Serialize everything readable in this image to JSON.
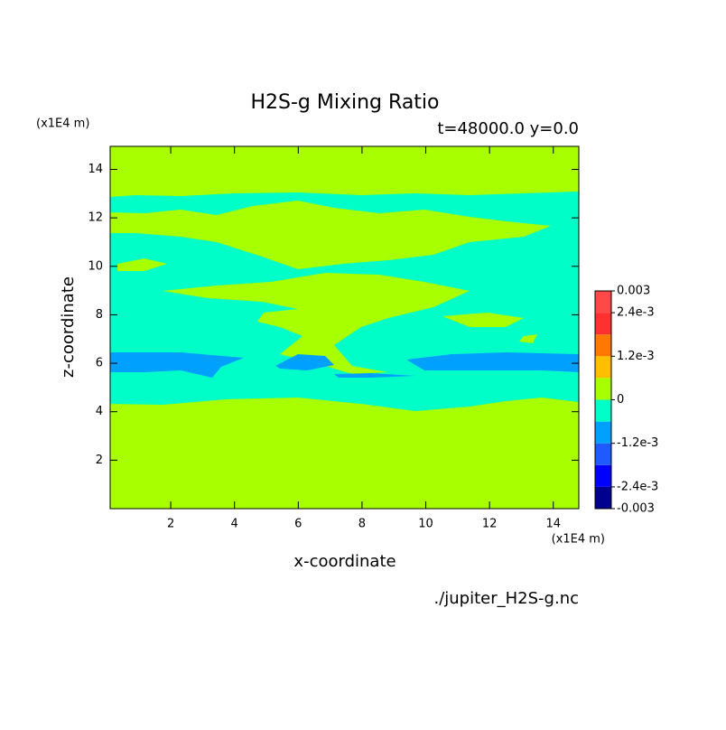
{
  "chart_data": {
    "type": "contour",
    "title": "H2S-g Mixing Ratio",
    "subtitle": "t=48000.0 y=0.0",
    "x_label": "x-coordinate",
    "y_label": "z-coordinate",
    "x_unit": "(x1E4 m)",
    "y_unit": "(x1E4 m)",
    "source": "./jupiter_H2S-g.nc",
    "xlim": [
      0.1,
      14.8
    ],
    "ylim": [
      0,
      14.95
    ],
    "xticks": [
      2,
      4,
      6,
      8,
      10,
      12,
      14
    ],
    "yticks": [
      2,
      4,
      6,
      8,
      10,
      12,
      14
    ],
    "levels": [
      -0.003,
      -0.0024,
      -0.0018,
      -0.0012,
      -0.0006,
      0,
      0.0006,
      0.0012,
      0.0018,
      0.0024,
      0.003
    ],
    "level_colors": [
      "#000090",
      "#0000ff",
      "#1e5aff",
      "#00a0ff",
      "#00ffc8",
      "#a8ff00",
      "#ffbe00",
      "#ff7800",
      "#ff3030",
      "#ff4848"
    ],
    "colorbar_ticks": [
      0.003,
      {
        "value": 0.0024,
        "label": "2.4e-3"
      },
      {
        "value": 0.0012,
        "label": "1.2e-3"
      },
      0,
      {
        "value": -0.0012,
        "label": "-1.2e-3"
      },
      {
        "value": -0.0024,
        "label": "-2.4e-3"
      },
      -0.003
    ]
  }
}
